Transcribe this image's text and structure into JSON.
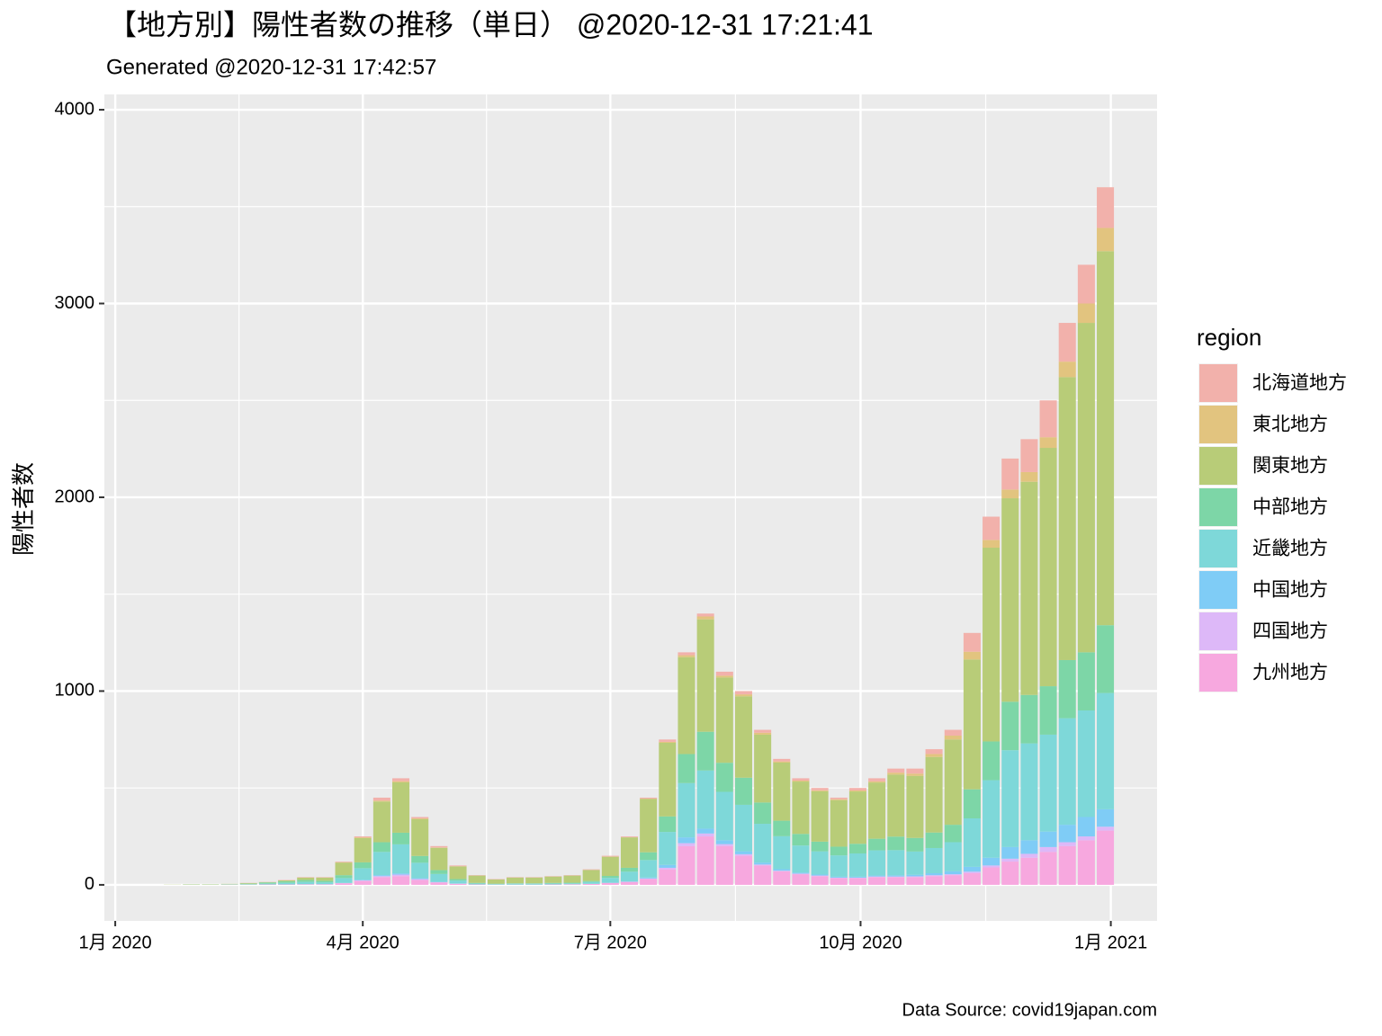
{
  "chart_data": {
    "type": "stacked_bar",
    "title": "【地方別】陽性者数の推移（単日） @2020-12-31 17:21:41",
    "subtitle": "Generated @2020-12-31 17:42:57",
    "y_label": "陽性者数",
    "caption": "Data Source: covid19japan.com",
    "legend_title": "region",
    "x": [
      "2020-01-15",
      "2020-01-22",
      "2020-01-29",
      "2020-02-05",
      "2020-02-12",
      "2020-02-19",
      "2020-02-26",
      "2020-03-04",
      "2020-03-11",
      "2020-03-18",
      "2020-03-25",
      "2020-04-01",
      "2020-04-08",
      "2020-04-15",
      "2020-04-22",
      "2020-04-29",
      "2020-05-06",
      "2020-05-13",
      "2020-05-20",
      "2020-05-27",
      "2020-06-03",
      "2020-06-10",
      "2020-06-17",
      "2020-06-24",
      "2020-07-01",
      "2020-07-08",
      "2020-07-15",
      "2020-07-22",
      "2020-07-29",
      "2020-08-05",
      "2020-08-12",
      "2020-08-19",
      "2020-08-26",
      "2020-09-02",
      "2020-09-09",
      "2020-09-16",
      "2020-09-23",
      "2020-09-30",
      "2020-10-07",
      "2020-10-14",
      "2020-10-21",
      "2020-10-28",
      "2020-11-04",
      "2020-11-11",
      "2020-11-18",
      "2020-11-25",
      "2020-12-02",
      "2020-12-09",
      "2020-12-16",
      "2020-12-23",
      "2020-12-30"
    ],
    "series": [
      {
        "name": "北海道地方",
        "color": "#f2b1ab",
        "values": [
          0,
          0,
          0,
          0,
          0,
          1,
          1,
          2,
          2,
          2,
          3,
          5,
          15,
          15,
          7,
          7,
          4,
          2,
          2,
          2,
          2,
          2,
          2,
          3,
          4,
          4,
          5,
          12,
          15,
          15,
          20,
          17,
          15,
          13,
          12,
          12,
          8,
          13,
          16,
          21,
          26,
          25,
          30,
          97,
          120,
          160,
          170,
          190,
          200,
          200,
          210
        ]
      },
      {
        "name": "東北地方",
        "color": "#e2c47f",
        "values": [
          0,
          0,
          0,
          0,
          0,
          0,
          0,
          0,
          1,
          1,
          2,
          4,
          5,
          6,
          4,
          2,
          1,
          0,
          0,
          0,
          0,
          0,
          0,
          0,
          1,
          1,
          2,
          5,
          10,
          15,
          10,
          10,
          10,
          6,
          5,
          5,
          5,
          5,
          6,
          10,
          12,
          15,
          20,
          40,
          40,
          45,
          50,
          55,
          80,
          100,
          120
        ]
      },
      {
        "name": "関東地方",
        "color": "#b8cc78",
        "values": [
          0,
          1,
          2,
          2,
          2,
          3,
          2,
          5,
          12,
          16,
          65,
          125,
          210,
          260,
          190,
          115,
          65,
          38,
          22,
          30,
          30,
          33,
          37,
          57,
          99,
          157,
          275,
          380,
          500,
          580,
          440,
          420,
          350,
          300,
          270,
          260,
          240,
          270,
          290,
          320,
          320,
          390,
          440,
          670,
          1000,
          1050,
          1100,
          1230,
          1460,
          1700,
          1930
        ]
      },
      {
        "name": "中部地方",
        "color": "#7dd6a7",
        "values": [
          0,
          0,
          0,
          0,
          1,
          3,
          6,
          8,
          10,
          8,
          15,
          30,
          50,
          60,
          35,
          20,
          8,
          3,
          2,
          2,
          2,
          3,
          3,
          5,
          10,
          20,
          40,
          80,
          150,
          200,
          150,
          140,
          110,
          80,
          60,
          50,
          45,
          50,
          60,
          70,
          70,
          80,
          90,
          150,
          200,
          250,
          250,
          250,
          300,
          300,
          350
        ]
      },
      {
        "name": "近畿地方",
        "color": "#7ed8d9",
        "values": [
          0,
          0,
          1,
          1,
          1,
          2,
          4,
          8,
          12,
          10,
          25,
          60,
          120,
          150,
          80,
          40,
          15,
          5,
          3,
          5,
          5,
          5,
          5,
          10,
          25,
          50,
          90,
          170,
          280,
          300,
          250,
          240,
          200,
          170,
          140,
          120,
          110,
          120,
          130,
          130,
          120,
          130,
          150,
          250,
          400,
          500,
          500,
          500,
          550,
          550,
          600
        ]
      },
      {
        "name": "中国地方",
        "color": "#7fccf6",
        "values": [
          0,
          0,
          0,
          0,
          0,
          0,
          0,
          0,
          0,
          0,
          1,
          3,
          5,
          6,
          4,
          2,
          1,
          0,
          0,
          0,
          0,
          0,
          0,
          0,
          1,
          2,
          5,
          15,
          30,
          25,
          20,
          15,
          10,
          8,
          5,
          5,
          5,
          5,
          5,
          6,
          8,
          10,
          15,
          25,
          40,
          60,
          70,
          80,
          90,
          100,
          90
        ]
      },
      {
        "name": "四国地方",
        "color": "#ddb8f8",
        "values": [
          0,
          0,
          0,
          0,
          0,
          0,
          0,
          0,
          0,
          0,
          1,
          3,
          5,
          8,
          5,
          2,
          1,
          0,
          0,
          0,
          0,
          0,
          0,
          0,
          0,
          1,
          3,
          8,
          15,
          15,
          10,
          8,
          5,
          3,
          3,
          3,
          2,
          2,
          3,
          3,
          4,
          5,
          5,
          8,
          10,
          15,
          20,
          25,
          20,
          20,
          20
        ]
      },
      {
        "name": "九州地方",
        "color": "#f7a8df",
        "values": [
          0,
          0,
          0,
          0,
          1,
          1,
          2,
          2,
          3,
          3,
          8,
          20,
          40,
          45,
          25,
          12,
          5,
          2,
          1,
          1,
          1,
          2,
          3,
          5,
          10,
          15,
          30,
          80,
          200,
          250,
          200,
          150,
          100,
          70,
          55,
          45,
          35,
          35,
          40,
          40,
          40,
          45,
          50,
          60,
          90,
          120,
          140,
          170,
          200,
          230,
          280
        ]
      }
    ],
    "xlim": [
      "2019-12-28",
      "2021-01-18"
    ],
    "xticks": [
      {
        "value": "2020-01-01",
        "label": "1月 2020"
      },
      {
        "value": "2020-04-01",
        "label": "4月 2020"
      },
      {
        "value": "2020-07-01",
        "label": "7月 2020"
      },
      {
        "value": "2020-10-01",
        "label": "10月 2020"
      },
      {
        "value": "2021-01-01",
        "label": "1月 2021"
      }
    ],
    "ylim": [
      -186,
      4079
    ],
    "yticks": [
      0,
      1000,
      2000,
      3000,
      4000
    ],
    "grid": true
  }
}
